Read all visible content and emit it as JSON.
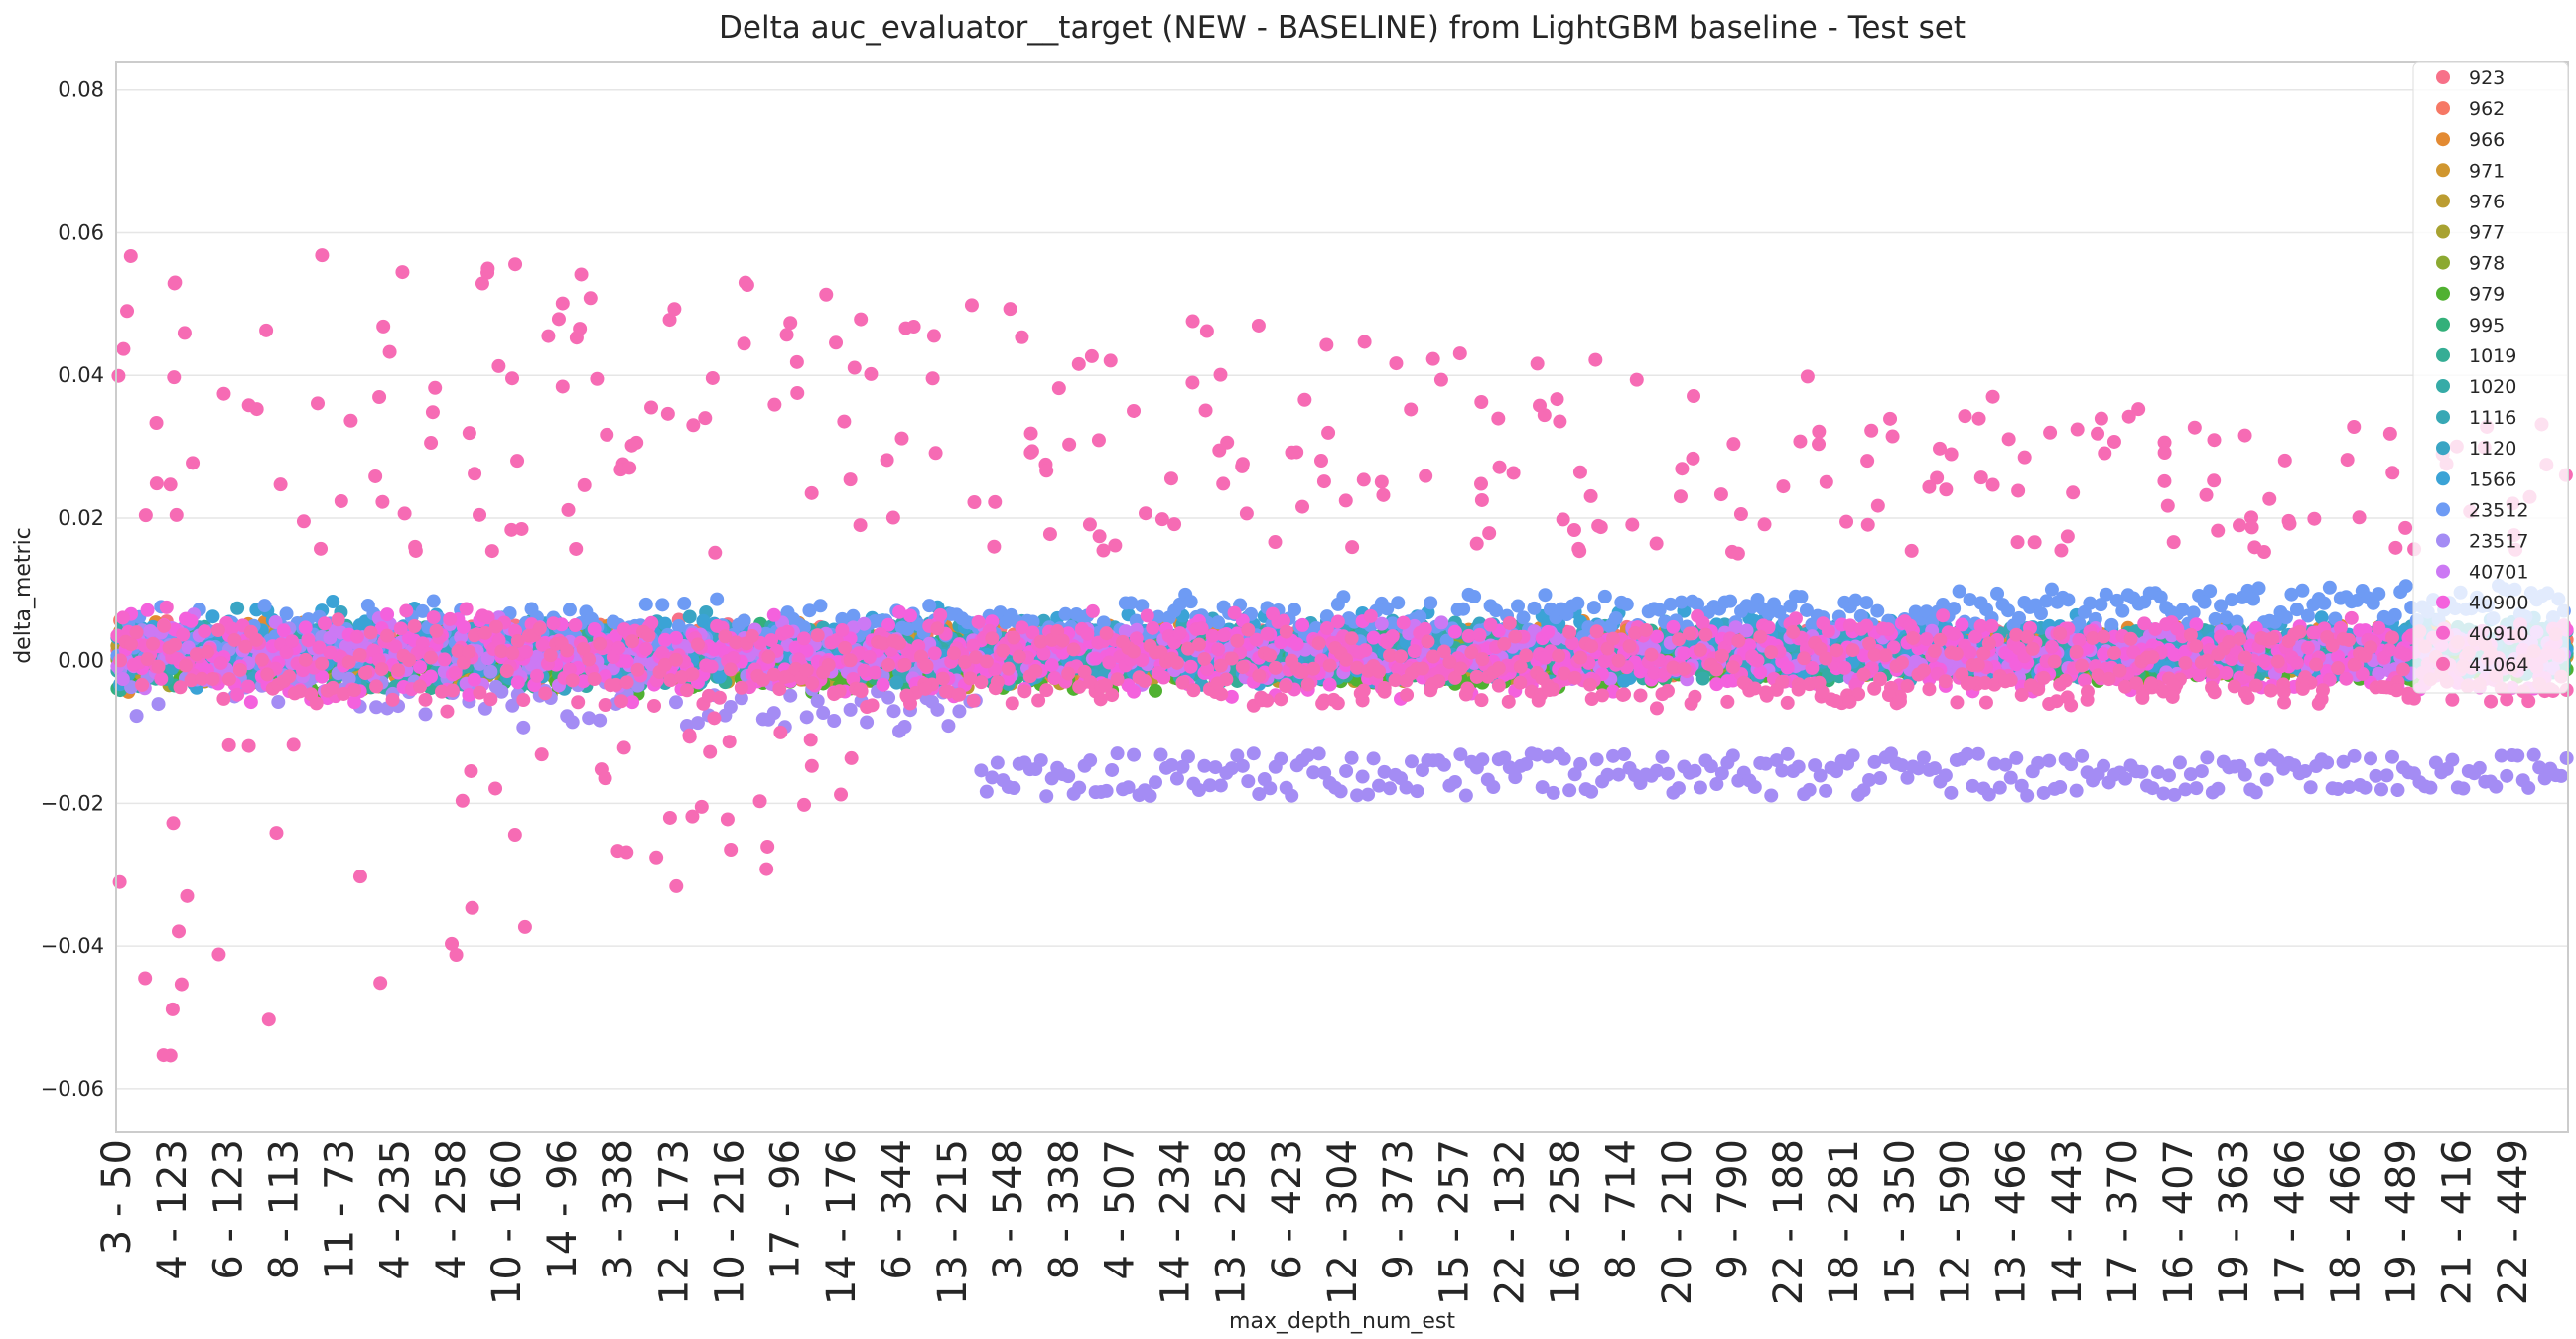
{
  "chart_data": {
    "type": "scatter",
    "title": "Delta auc_evaluator__target (NEW - BASELINE) from LightGBM baseline - Test set",
    "xlabel": "max_depth_num_est",
    "ylabel": "delta_metric",
    "ylim": [
      -0.066,
      0.084
    ],
    "yticks": [
      0.08,
      0.06,
      0.04,
      0.02,
      0.0,
      -0.02,
      -0.04,
      -0.06
    ],
    "ytick_labels": [
      "0.08",
      "0.06",
      "0.04",
      "0.02",
      "0.00",
      "−0.02",
      "−0.04",
      "−0.06"
    ],
    "x_tick_labels": [
      "3 - 50",
      "4 - 123",
      "6 - 123",
      "8 - 113",
      "11 - 73",
      "4 - 235",
      "4 - 258",
      "10 - 160",
      "14 - 96",
      "3 - 338",
      "12 - 173",
      "10 - 216",
      "17 - 96",
      "14 - 176",
      "6 - 344",
      "13 - 215",
      "3 - 548",
      "8 - 338",
      "4 - 507",
      "14 - 234",
      "13 - 258",
      "6 - 423",
      "12 - 304",
      "9 - 373",
      "15 - 257",
      "22 - 132",
      "16 - 258",
      "8 - 714",
      "20 - 210",
      "9 - 790",
      "22 - 188",
      "18 - 281",
      "15 - 350",
      "12 - 590",
      "13 - 466",
      "14 - 443",
      "17 - 370",
      "16 - 407",
      "19 - 363",
      "17 - 466",
      "18 - 466",
      "19 - 489",
      "21 - 416",
      "22 - 449"
    ],
    "n_positions": 900,
    "grid": true,
    "legend_position": "top-right",
    "legend_title": "",
    "series": [
      {
        "name": "923",
        "color": "#f77189",
        "band": [
          0.0,
          0.004
        ],
        "drift": 0.0
      },
      {
        "name": "962",
        "color": "#f67865",
        "band": [
          -0.001,
          0.003
        ],
        "drift": 0.0
      },
      {
        "name": "966",
        "color": "#e38a32",
        "band": [
          -0.002,
          0.004
        ],
        "drift": 0.001
      },
      {
        "name": "971",
        "color": "#d0962f",
        "band": [
          -0.001,
          0.002
        ],
        "drift": 0.0
      },
      {
        "name": "976",
        "color": "#bb9c31",
        "band": [
          -0.002,
          0.002
        ],
        "drift": 0.0
      },
      {
        "name": "977",
        "color": "#a8a231",
        "band": [
          -0.001,
          0.002
        ],
        "drift": 0.0
      },
      {
        "name": "978",
        "color": "#8ca931",
        "band": [
          -0.001,
          0.002
        ],
        "drift": 0.0
      },
      {
        "name": "979",
        "color": "#50b131",
        "band": [
          -0.003,
          0.002
        ],
        "drift": 0.0
      },
      {
        "name": "995",
        "color": "#33b07a",
        "band": [
          -0.002,
          0.003
        ],
        "drift": 0.0
      },
      {
        "name": "1019",
        "color": "#35ad95",
        "band": [
          -0.002,
          0.003
        ],
        "drift": 0.001
      },
      {
        "name": "1020",
        "color": "#36aba7",
        "band": [
          -0.002,
          0.004
        ],
        "drift": 0.0
      },
      {
        "name": "1116",
        "color": "#38a8b5",
        "band": [
          -0.002,
          0.004
        ],
        "drift": 0.001
      },
      {
        "name": "1120",
        "color": "#3aa5c4",
        "band": [
          -0.002,
          0.005
        ],
        "drift": 0.0
      },
      {
        "name": "1566",
        "color": "#3ba3d6",
        "band": [
          -0.002,
          0.006
        ],
        "drift": 0.0
      },
      {
        "name": "23512",
        "color": "#6e9bf4",
        "band": [
          0.001,
          0.006
        ],
        "drift": 0.005
      },
      {
        "name": "23517",
        "color": "#a48cf4",
        "band": [
          -0.006,
          0.004
        ],
        "drift": -0.012
      },
      {
        "name": "40701",
        "color": "#cc79f4",
        "band": [
          -0.002,
          0.004
        ],
        "drift": 0.0
      },
      {
        "name": "40900",
        "color": "#f461dd",
        "band": [
          -0.004,
          0.005
        ],
        "drift": 0.0
      },
      {
        "name": "40910",
        "color": "#f565cc",
        "band": [
          -0.003,
          0.006
        ],
        "drift": 0.0
      },
      {
        "name": "41064",
        "color": "#f66bb4",
        "band": [
          -0.006,
          0.004
        ],
        "drift": 0.0
      }
    ]
  }
}
